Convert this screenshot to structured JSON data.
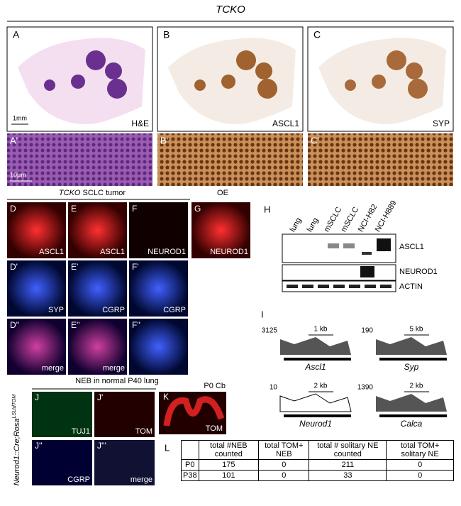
{
  "title": "TCKO",
  "top_panels": [
    {
      "letter": "A",
      "scale": "1mm",
      "stain": "H&E"
    },
    {
      "letter": "B",
      "stain": "ASCL1"
    },
    {
      "letter": "C",
      "stain": "SYP"
    }
  ],
  "zoom_panels": [
    {
      "letter": "A'",
      "scale": "10μm"
    },
    {
      "letter": "B'"
    },
    {
      "letter": "C'"
    }
  ],
  "tumor_header": {
    "italic": "TCKO",
    "rest": " SCLC tumor"
  },
  "oe_label": "OE",
  "if_panels": [
    {
      "letter": "D",
      "stain": "ASCL1"
    },
    {
      "letter": "E",
      "stain": "ASCL1"
    },
    {
      "letter": "F",
      "stain": "NEUROD1"
    },
    {
      "letter": "G",
      "stain": "NEUROD1"
    },
    {
      "letter": "D'",
      "stain": "SYP"
    },
    {
      "letter": "E'",
      "stain": "CGRP"
    },
    {
      "letter": "F'",
      "stain": "CGRP"
    },
    {
      "letter": "D''",
      "stain": "merge"
    },
    {
      "letter": "E''",
      "stain": "merge"
    },
    {
      "letter": "F''"
    }
  ],
  "blot": {
    "letter": "H",
    "lanes": [
      "lung",
      "lung",
      "mSCLC",
      "mSCLC",
      "NCI-H82",
      "NCI-H889"
    ],
    "bands": [
      "ASCL1",
      "NEUROD1",
      "ACTIN"
    ]
  },
  "tracks": {
    "letter": "I",
    "genes": [
      {
        "name": "Ascl1",
        "max": "3125",
        "scale": "1 kb"
      },
      {
        "name": "Syp",
        "max": "190",
        "scale": "5 kb"
      },
      {
        "name": "Neurod1",
        "max": "10",
        "scale": "2 kb"
      },
      {
        "name": "Calca",
        "max": "1390",
        "scale": "2 kb"
      }
    ]
  },
  "neb_header": "NEB in normal P40 lung",
  "side_label": {
    "main": "Neurod1::Cre;Rosa",
    "sup": "LSLtdTOM"
  },
  "neb_panels": [
    {
      "letter": "J",
      "stain": "TUJ1"
    },
    {
      "letter": "J'",
      "stain": "TOM"
    },
    {
      "letter": "J''",
      "stain": "CGRP"
    },
    {
      "letter": "J'''",
      "stain": "merge"
    }
  ],
  "cb_panel": {
    "letter": "K",
    "top": "P0  Cb",
    "stain": "TOM"
  },
  "table": {
    "letter": "L",
    "header": [
      "",
      "total #NEB counted",
      "total TOM+ NEB",
      "total # solitary NE counted",
      "total TOM+ solitary NE"
    ],
    "rows": [
      [
        "P0",
        "175",
        "0",
        "211",
        "0"
      ],
      [
        "P38",
        "101",
        "0",
        "33",
        "0"
      ]
    ]
  }
}
